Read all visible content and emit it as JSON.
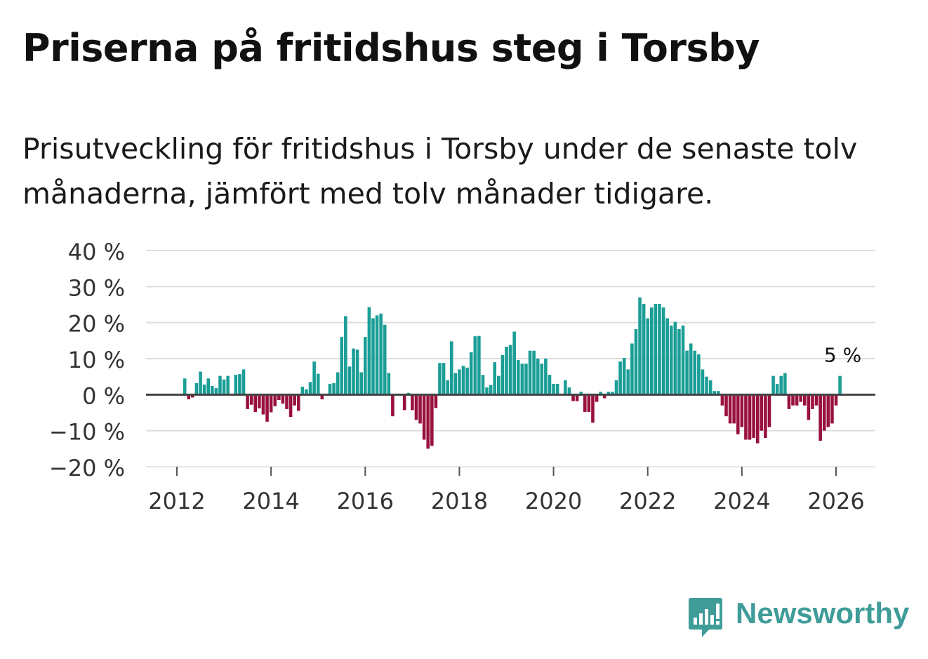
{
  "header": {
    "title": "Priserna på fritidshus steg i Torsby",
    "subtitle": "Prisutveckling för fritidshus i Torsby under de senaste tolv månaderna, jämfört med tolv månader tidigare."
  },
  "brand": {
    "name": "Newsworthy"
  },
  "colors": {
    "positive": "#1a9e96",
    "negative": "#99113d",
    "grid": "#dddddd",
    "zero": "#444444"
  },
  "chart_data": {
    "type": "bar",
    "title": "Priserna på fritidshus steg i Torsby",
    "ylabel": "",
    "xlabel": "",
    "ylim": [
      -20,
      40
    ],
    "y_ticks": [
      {
        "value": 40,
        "label": "40 %"
      },
      {
        "value": 30,
        "label": "30 %"
      },
      {
        "value": 20,
        "label": "20 %"
      },
      {
        "value": 10,
        "label": "10 %"
      },
      {
        "value": 0,
        "label": "0 %"
      },
      {
        "value": -10,
        "label": "−10 %"
      },
      {
        "value": -20,
        "label": "−20 %"
      }
    ],
    "x_ticks": [
      {
        "value": 2012,
        "label": "2012"
      },
      {
        "value": 2014,
        "label": "2014"
      },
      {
        "value": 2016,
        "label": "2016"
      },
      {
        "value": 2018,
        "label": "2018"
      },
      {
        "value": 2020,
        "label": "2020"
      },
      {
        "value": 2022,
        "label": "2022"
      },
      {
        "value": 2024,
        "label": "2024"
      },
      {
        "value": 2026,
        "label": "2026"
      }
    ],
    "series_start": {
      "year": 2012,
      "month": 3
    },
    "values": [
      4.5,
      -1.3,
      -0.8,
      3.2,
      6.4,
      2.8,
      4.5,
      2.4,
      1.8,
      5.2,
      4.2,
      5.2,
      0,
      5.5,
      5.7,
      7.0,
      -4.0,
      -2.8,
      -4.8,
      -3.8,
      -5.5,
      -7.5,
      -4.9,
      -3.2,
      -1.5,
      -2.5,
      -4.0,
      -6.2,
      -3.0,
      -4.5,
      2.2,
      1.5,
      3.5,
      9.2,
      5.8,
      -1.3,
      0,
      3.0,
      3.2,
      6.2,
      16.0,
      21.8,
      7.8,
      12.8,
      12.5,
      6.2,
      16.0,
      24.3,
      21.2,
      22.0,
      22.5,
      19.4,
      6.0,
      -6.0,
      0,
      0,
      -4.3,
      0.5,
      -4.3,
      -7.0,
      -8.0,
      -12.5,
      -15.0,
      -14.2,
      -3.7,
      8.8,
      8.8,
      4.0,
      14.8,
      6.0,
      7.0,
      8.0,
      7.5,
      11.8,
      16.2,
      16.3,
      5.5,
      2.0,
      2.7,
      9.0,
      5.2,
      11.0,
      13.3,
      13.8,
      17.5,
      9.6,
      8.6,
      8.6,
      12.2,
      12.2,
      10.0,
      8.6,
      10.0,
      5.5,
      3.0,
      3.0,
      0,
      4.0,
      2.0,
      -1.8,
      -1.8,
      0.8,
      -4.8,
      -4.8,
      -7.8,
      -2.0,
      0.8,
      -1.0,
      0.8,
      0.8,
      4.0,
      9.2,
      10.2,
      7.0,
      14.2,
      18.2,
      27.0,
      25.2,
      21.2,
      24.2,
      25.2,
      25.2,
      24.2,
      21.2,
      19.2,
      20.2,
      18.2,
      19.2,
      12.2,
      14.2,
      12.2,
      11.2,
      7.0,
      5.0,
      4.0,
      1.0,
      1.0,
      -3.0,
      -6.0,
      -8.0,
      -8.0,
      -11.0,
      -9.0,
      -12.5,
      -12.5,
      -12.0,
      -13.5,
      -10.0,
      -12.0,
      -9.0,
      5.2,
      3.0,
      5.2,
      6.0,
      -4.0,
      -3.0,
      -3.0,
      -2.0,
      -3.0,
      -7.0,
      -4.0,
      -3.0,
      -12.8,
      -10.0,
      -9.0,
      -8.0,
      -3.0,
      5.2
    ],
    "annotation": {
      "label": "5 %",
      "target": "last"
    }
  }
}
